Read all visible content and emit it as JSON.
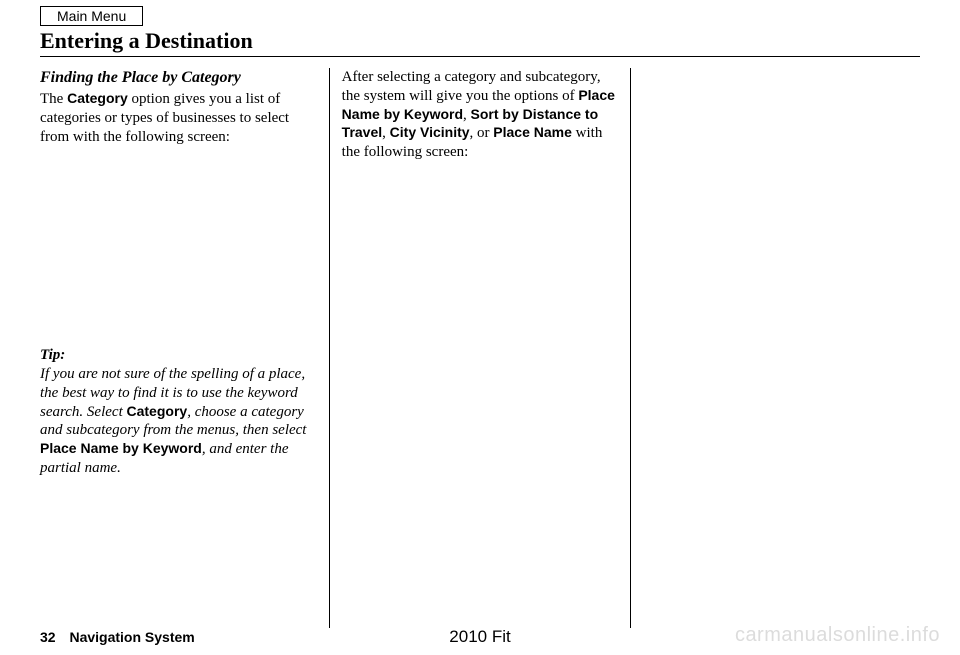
{
  "mainMenu": "Main Menu",
  "pageTitle": "Entering a Destination",
  "col1": {
    "subheading": "Finding the Place by Category",
    "para1_a": "The ",
    "para1_bold": "Category",
    "para1_b": " option gives you a list of categories or types of businesses to select from with the following screen:",
    "tipLabel": "Tip:",
    "tip_a": "If you are not sure of the spelling of a place, the best way to find it is to use the keyword search. Select ",
    "tip_bold1": "Category",
    "tip_b": ", choose a category and subcategory from the menus, then select ",
    "tip_bold2": "Place Name by Keyword",
    "tip_c": ", and enter the partial name."
  },
  "col2": {
    "para_a": "After selecting a category and subcategory, the system will give you the options of ",
    "b1": "Place Name by Keyword",
    "s1": ", ",
    "b2": "Sort by Distance to Travel",
    "s2": ", ",
    "b3": "City Vicinity",
    "s3": ", or ",
    "b4": "Place Name",
    "para_b": " with the following screen:"
  },
  "footer": {
    "pageNum": "32",
    "section": "Navigation System",
    "model": "2010 Fit",
    "watermark": "carmanualsonline.info"
  }
}
